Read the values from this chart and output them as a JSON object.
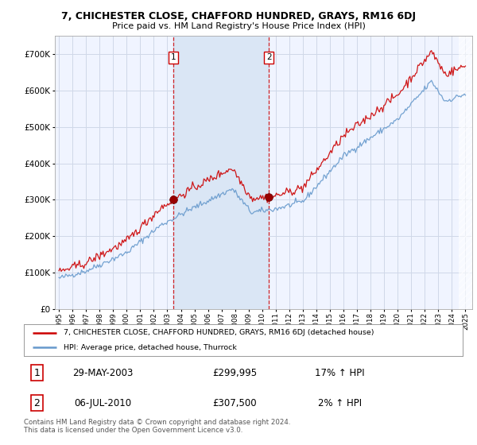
{
  "title": "7, CHICHESTER CLOSE, CHAFFORD HUNDRED, GRAYS, RM16 6DJ",
  "subtitle": "Price paid vs. HM Land Registry's House Price Index (HPI)",
  "red_label": "7, CHICHESTER CLOSE, CHAFFORD HUNDRED, GRAYS, RM16 6DJ (detached house)",
  "blue_label": "HPI: Average price, detached house, Thurrock",
  "footer": "Contains HM Land Registry data © Crown copyright and database right 2024.\nThis data is licensed under the Open Government Licence v3.0.",
  "transaction1_date": "29-MAY-2003",
  "transaction1_price": "£299,995",
  "transaction1_hpi": "17% ↑ HPI",
  "transaction2_date": "06-JUL-2010",
  "transaction2_price": "£307,500",
  "transaction2_hpi": "2% ↑ HPI",
  "ylim": [
    0,
    750000
  ],
  "ytick_step": 100000,
  "background_color": "#ffffff",
  "plot_bg_color": "#f0f4ff",
  "grid_color": "#d0d8e8",
  "red_color": "#cc0000",
  "blue_color": "#6699cc",
  "transaction1_x": 2003.42,
  "transaction1_y": 299995,
  "transaction2_x": 2010.5,
  "transaction2_y": 307500,
  "xmin": 1994.7,
  "xmax": 2025.5,
  "shade_x1": 2003.42,
  "shade_x2": 2010.5
}
